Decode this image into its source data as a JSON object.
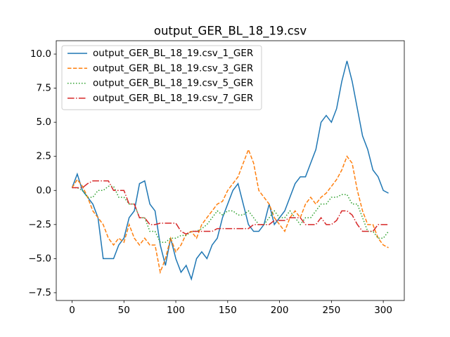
{
  "chart_data": {
    "type": "line",
    "title": "output_GER_BL_18_19.csv",
    "x": [
      0,
      5,
      10,
      15,
      20,
      25,
      30,
      35,
      40,
      45,
      50,
      55,
      60,
      65,
      70,
      75,
      80,
      85,
      90,
      95,
      100,
      105,
      110,
      115,
      120,
      125,
      130,
      135,
      140,
      145,
      150,
      155,
      160,
      165,
      170,
      175,
      180,
      185,
      190,
      195,
      200,
      205,
      210,
      215,
      220,
      225,
      230,
      235,
      240,
      245,
      250,
      255,
      260,
      265,
      270,
      275,
      280,
      285,
      290,
      295,
      300,
      305
    ],
    "series": [
      {
        "name": "output_GER_BL_18_19.csv_1_GER",
        "color": "#1f77b4",
        "style": "solid",
        "values": [
          0.2,
          1.2,
          0,
          -0.5,
          -1,
          -2,
          -5,
          -5,
          -5,
          -4,
          -3.5,
          -2,
          -1.5,
          0.5,
          0.7,
          -1,
          -1.5,
          -4,
          -5.5,
          -3.5,
          -5,
          -6,
          -5.5,
          -6.5,
          -5,
          -4.5,
          -5,
          -4,
          -3.5,
          -2,
          -1,
          0,
          0.5,
          -1,
          -2.5,
          -3,
          -3,
          -2.5,
          -1,
          -2.5,
          -2,
          -1.5,
          -0.5,
          0.5,
          1,
          1,
          2,
          3,
          5,
          5.5,
          5,
          6,
          8,
          9.5,
          8,
          6,
          4,
          3,
          1.5,
          1,
          0,
          -0.2
        ]
      },
      {
        "name": "output_GER_BL_18_19.csv_3_GER",
        "color": "#ff7f0e",
        "style": "dashed",
        "values": [
          0.2,
          0.8,
          0.3,
          -0.5,
          -1.5,
          -2,
          -2.5,
          -3.5,
          -4,
          -3.5,
          -3.8,
          -2.5,
          -3.5,
          -4,
          -3.5,
          -4,
          -4,
          -6,
          -5,
          -3.5,
          -4.5,
          -4,
          -3.2,
          -3,
          -3.5,
          -2.5,
          -2,
          -1.5,
          -1,
          -0.8,
          0,
          0.5,
          1,
          2,
          3,
          2,
          0,
          -0.5,
          -1,
          -2,
          -2.5,
          -3,
          -2,
          -1.5,
          -2,
          -1,
          -0.5,
          -1,
          -0.5,
          -0.2,
          0.3,
          0.8,
          1.5,
          2.5,
          2,
          0,
          -1.5,
          -2.5,
          -2.5,
          -3.5,
          -4,
          -4.2
        ]
      },
      {
        "name": "output_GER_BL_18_19.csv_5_GER",
        "color": "#2ca02c",
        "style": "dotted",
        "values": [
          0.2,
          0.2,
          0,
          -0.5,
          -0.5,
          0,
          0,
          0.3,
          0.3,
          -0.5,
          -0.5,
          -1,
          -1,
          -2,
          -2,
          -3,
          -3,
          -3.8,
          -3.8,
          -3.5,
          -3.5,
          -3.3,
          -3.3,
          -3,
          -3,
          -2.8,
          -2.5,
          -2,
          -1.5,
          -1.8,
          -1.5,
          -1.5,
          -1.8,
          -1.8,
          -1.5,
          -2,
          -2.5,
          -2.5,
          -2,
          -1.5,
          -2,
          -2,
          -1.5,
          -2,
          -2.5,
          -2,
          -2,
          -1.5,
          -1,
          -1,
          -0.5,
          -0.5,
          -0.3,
          -0.3,
          -1,
          -1,
          -2,
          -3,
          -3,
          -3.5,
          -3.5,
          -3
        ]
      },
      {
        "name": "output_GER_BL_18_19.csv_7_GER",
        "color": "#d62728",
        "style": "dashdot",
        "values": [
          0.2,
          0.2,
          0.2,
          0.5,
          0.7,
          0.7,
          0.7,
          0.7,
          0,
          0,
          0,
          -1,
          -1,
          -2,
          -2,
          -2.5,
          -2.5,
          -2.4,
          -2.4,
          -2.4,
          -2.4,
          -3,
          -3.2,
          -3,
          -3,
          -3,
          -3,
          -3,
          -2.8,
          -2.8,
          -2.8,
          -2.8,
          -2.8,
          -2.8,
          -2.8,
          -2.5,
          -2.5,
          -2.5,
          -2.5,
          -2.2,
          -2.2,
          -2.2,
          -2,
          -2,
          -2,
          -2.5,
          -2.5,
          -2.5,
          -2,
          -2.5,
          -2.5,
          -2.2,
          -1.5,
          -1.5,
          -1.8,
          -2.5,
          -3,
          -3,
          -3,
          -2.5,
          -2.5,
          -2.5
        ]
      }
    ],
    "xlim": [
      -15.25,
      320.25
    ],
    "xticks": [
      0,
      50,
      100,
      150,
      200,
      250,
      300
    ],
    "ylim": [
      -8.07,
      10.98
    ],
    "yticks": [
      {
        "value": -7.5,
        "label": "−7.5"
      },
      {
        "value": -5,
        "label": "−5.0"
      },
      {
        "value": -2.5,
        "label": "−2.5"
      },
      {
        "value": 0,
        "label": "0.0"
      },
      {
        "value": 2.5,
        "label": "2.5"
      },
      {
        "value": 5,
        "label": "5.0"
      },
      {
        "value": 7.5,
        "label": "7.5"
      },
      {
        "value": 10,
        "label": "10.0"
      }
    ],
    "legend": "upper left"
  }
}
